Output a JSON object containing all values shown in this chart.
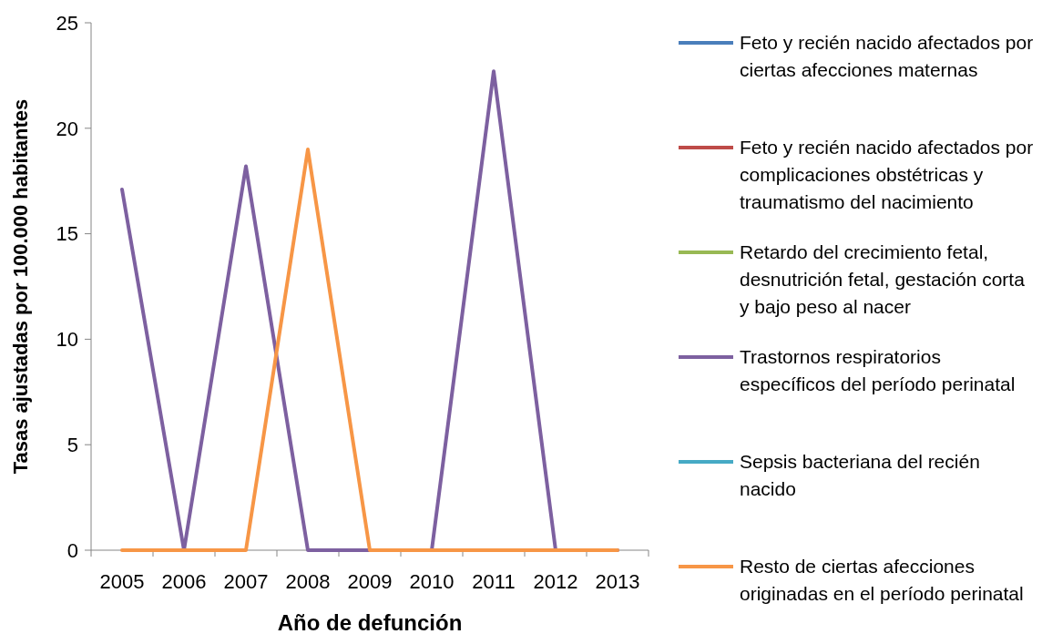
{
  "chart_data": {
    "type": "line",
    "xlabel": "Año de defunción",
    "ylabel": "Tasas ajustadas por 100.000 habitantes",
    "categories": [
      "2005",
      "2006",
      "2007",
      "2008",
      "2009",
      "2010",
      "2011",
      "2012",
      "2013"
    ],
    "series": [
      {
        "name": "Feto y recién nacido afectados por ciertas afecciones maternas",
        "color": "#4a7ebb",
        "values": [
          null,
          null,
          null,
          null,
          null,
          null,
          null,
          null,
          null
        ]
      },
      {
        "name": "Feto y recién nacido afectados por complicaciones obstétricas y traumatismo del nacimiento",
        "color": "#be4b48",
        "values": [
          null,
          null,
          null,
          null,
          null,
          null,
          null,
          null,
          null
        ]
      },
      {
        "name": "Retardo del crecimiento fetal, desnutrición fetal, gestación corta y bajo peso al nacer",
        "color": "#98b954",
        "values": [
          null,
          null,
          null,
          null,
          null,
          null,
          null,
          null,
          null
        ]
      },
      {
        "name": "Trastornos respiratorios específicos del período perinatal",
        "color": "#7d60a0",
        "values": [
          17.1,
          0,
          18.2,
          0,
          0,
          0,
          22.7,
          0,
          0
        ]
      },
      {
        "name": "Sepsis bacteriana del recién nacido",
        "color": "#46aac5",
        "values": [
          null,
          null,
          null,
          null,
          null,
          null,
          null,
          null,
          null
        ]
      },
      {
        "name": "Resto de ciertas afecciones originadas en el período perinatal",
        "color": "#f79646",
        "values": [
          0,
          0,
          0,
          19,
          0,
          0,
          0,
          0,
          0
        ]
      }
    ],
    "ylim": [
      0,
      25
    ],
    "yticks": [
      0,
      5,
      10,
      15,
      20,
      25
    ],
    "grid": false,
    "legend": "right",
    "marker": "none",
    "line_style": "solid"
  }
}
